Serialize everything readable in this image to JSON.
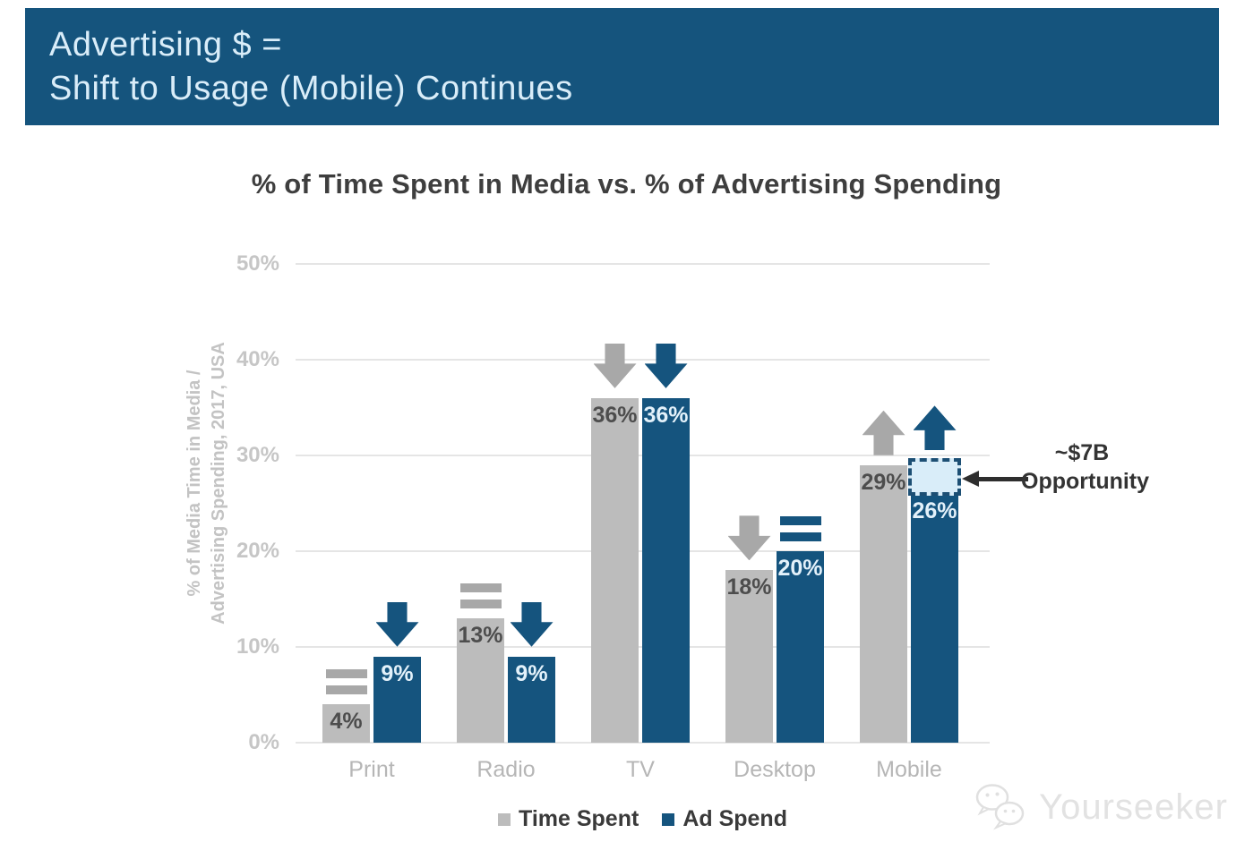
{
  "header": {
    "line1": "Advertising $ =",
    "line2": "Shift to Usage (Mobile) Continues",
    "bg_color": "#15547d",
    "text_color": "#d9edf9"
  },
  "chart_data": {
    "type": "bar",
    "title": "% of Time Spent in Media vs. % of Advertising Spending",
    "ylabel_line1": "% of Media Time in Media /",
    "ylabel_line2": "Advertising Spending, 2017, USA",
    "categories": [
      "Print",
      "Radio",
      "TV",
      "Desktop",
      "Mobile"
    ],
    "series": [
      {
        "name": "Time Spent",
        "color": "#bcbcbc",
        "indicator_color": "#a8a8a8",
        "value_label_color": "#4d4d4d",
        "values": [
          4,
          13,
          36,
          18,
          29
        ],
        "value_labels": [
          "4%",
          "13%",
          "36%",
          "18%",
          "29%"
        ],
        "trends": [
          "equal",
          "equal",
          "down",
          "down",
          "up"
        ]
      },
      {
        "name": "Ad Spend",
        "color": "#15547e",
        "indicator_color": "#15547e",
        "value_label_color": "#e3f1fa",
        "values": [
          9,
          9,
          36,
          20,
          26
        ],
        "value_labels": [
          "9%",
          "9%",
          "36%",
          "20%",
          "26%"
        ],
        "trends": [
          "down",
          "down",
          "down",
          "equal",
          "up"
        ]
      }
    ],
    "yticks": [
      {
        "label": "0%",
        "value": 0
      },
      {
        "label": "10%",
        "value": 10
      },
      {
        "label": "20%",
        "value": 20
      },
      {
        "label": "30%",
        "value": 30
      },
      {
        "label": "40%",
        "value": 40
      },
      {
        "label": "50%",
        "value": 50
      }
    ],
    "ylim": [
      0,
      50
    ],
    "grid": true,
    "legend_position": "bottom",
    "annotation": {
      "line1": "~$7B",
      "line2": "Opportunity",
      "target_category": "Mobile",
      "target_series": "Ad Spend",
      "box_from": 26,
      "box_to": 29.5,
      "box_fill": "#d9edf9",
      "box_border": "#1d4f74"
    }
  },
  "watermark": {
    "text": "Yourseeker",
    "icon": "chat-bubbles-icon"
  },
  "colors": {
    "grid": "#e5e5e5",
    "tick_text": "#c6c6c6",
    "category_text": "#b6b6b6",
    "title_text": "#3e3e3e"
  }
}
